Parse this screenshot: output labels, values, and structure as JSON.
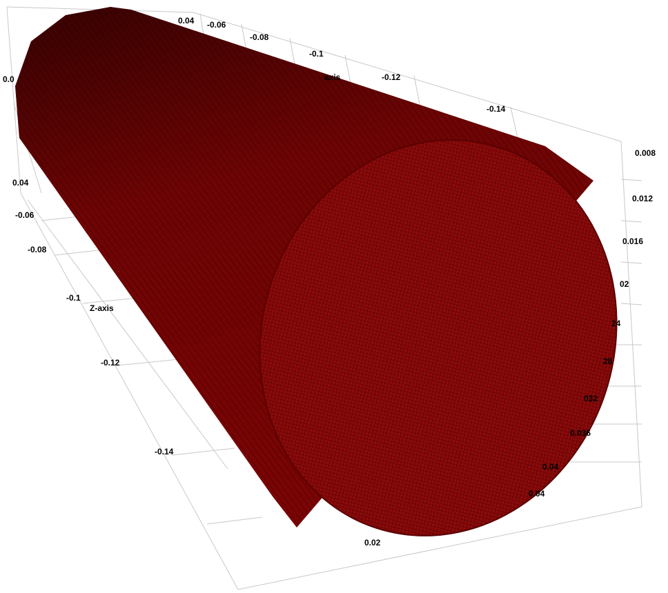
{
  "axes": {
    "top": [
      "0.04",
      "-0.06",
      "-0.08",
      "-0.1",
      "-0.12",
      "-0.14",
      "axis"
    ],
    "left": [
      "0.0",
      "0.04",
      "-0.06",
      "-0.08",
      "-0.1",
      "Z-axis",
      "-0.12",
      "-0.14"
    ],
    "right": [
      "0.008",
      "0.012",
      "0.016",
      "02",
      "24",
      "28",
      "032",
      "0.036",
      "0.04",
      "0.04"
    ],
    "bottom": [
      "0.02"
    ]
  }
}
